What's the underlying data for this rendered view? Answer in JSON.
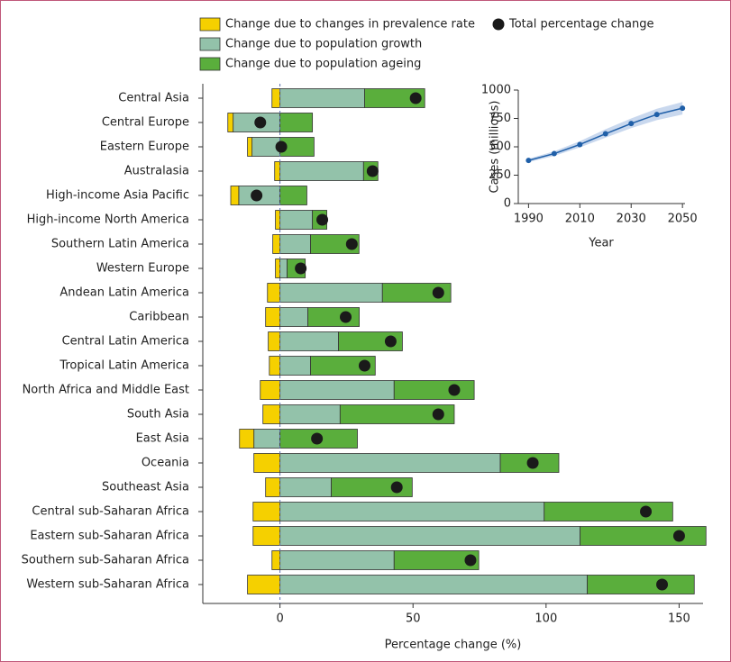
{
  "chart_data": [
    {
      "type": "stacked-hbar",
      "xlabel": "Percentage change (%)",
      "categories": [
        "Central Asia",
        "Central Europe",
        "Eastern Europe",
        "Australasia",
        "High-income Asia Pacific",
        "High-income North America",
        "Southern Latin America",
        "Western Europe",
        "Andean Latin America",
        "Caribbean",
        "Central Latin America",
        "Tropical Latin America",
        "North Africa and Middle East",
        "South Asia",
        "East Asia",
        "Oceania",
        "Southeast Asia",
        "Central sub-Saharan Africa",
        "Eastern sub-Saharan Africa",
        "Southern sub-Saharan Africa",
        "Western sub-Saharan Africa"
      ],
      "series": [
        {
          "name": "Change due to changes in prevalence rate",
          "color": "#f5d000",
          "values": [
            -3,
            -2,
            -1.7,
            -2,
            -3,
            -1.7,
            -2.7,
            -1.7,
            -4.7,
            -5.4,
            -4.4,
            -4,
            -7.4,
            -6.4,
            -5.4,
            -9.8,
            -5.4,
            -10.1,
            -10.1,
            -3,
            -12.2
          ]
        },
        {
          "name": "Change due to population growth",
          "color": "#93c2aa",
          "values": [
            31.8,
            -17.6,
            -10.5,
            31.4,
            -15.5,
            12.2,
            11.5,
            2.7,
            38.5,
            10.5,
            22,
            11.5,
            42.9,
            22.6,
            -9.8,
            82.8,
            19.3,
            99.3,
            112.8,
            42.9,
            115.5
          ]
        },
        {
          "name": "Change due to population ageing",
          "color": "#5aae3c",
          "values": [
            22.6,
            12.2,
            12.8,
            5.4,
            10.1,
            5.4,
            18.2,
            6.8,
            25.7,
            19.3,
            24,
            24.3,
            30.1,
            42.9,
            29.1,
            22,
            30.4,
            48.3,
            47.3,
            31.8,
            40.2
          ]
        }
      ],
      "total": {
        "name": "Total percentage change",
        "color": "#1a1a1a",
        "values": [
          51,
          -7.4,
          0.5,
          34.8,
          -8.8,
          15.9,
          27,
          7.8,
          59.5,
          24.7,
          41.6,
          31.8,
          65.5,
          59.5,
          13.9,
          95,
          43.9,
          137.5,
          150,
          71.6,
          143.6
        ]
      },
      "xlim": [
        -29,
        159
      ],
      "xticks": [
        0,
        50,
        100,
        150
      ]
    },
    {
      "type": "line",
      "xlabel": "Year",
      "ylabel": "Cases (millions)",
      "x": [
        1990,
        2000,
        2010,
        2020,
        2030,
        2040,
        2050
      ],
      "series": [
        {
          "color": "#1f5fa8",
          "values": [
            380,
            440,
            520,
            615,
            705,
            785,
            840
          ],
          "lower": [
            365,
            420,
            495,
            580,
            665,
            735,
            785
          ],
          "upper": [
            395,
            460,
            550,
            655,
            750,
            835,
            895
          ]
        }
      ],
      "band_color": "#c9d8ee",
      "xlim": [
        1986,
        2051
      ],
      "xticks": [
        1990,
        2010,
        2030,
        2050
      ],
      "ylim": [
        0,
        1000
      ],
      "yticks": [
        0,
        250,
        500,
        750,
        1000
      ]
    }
  ]
}
